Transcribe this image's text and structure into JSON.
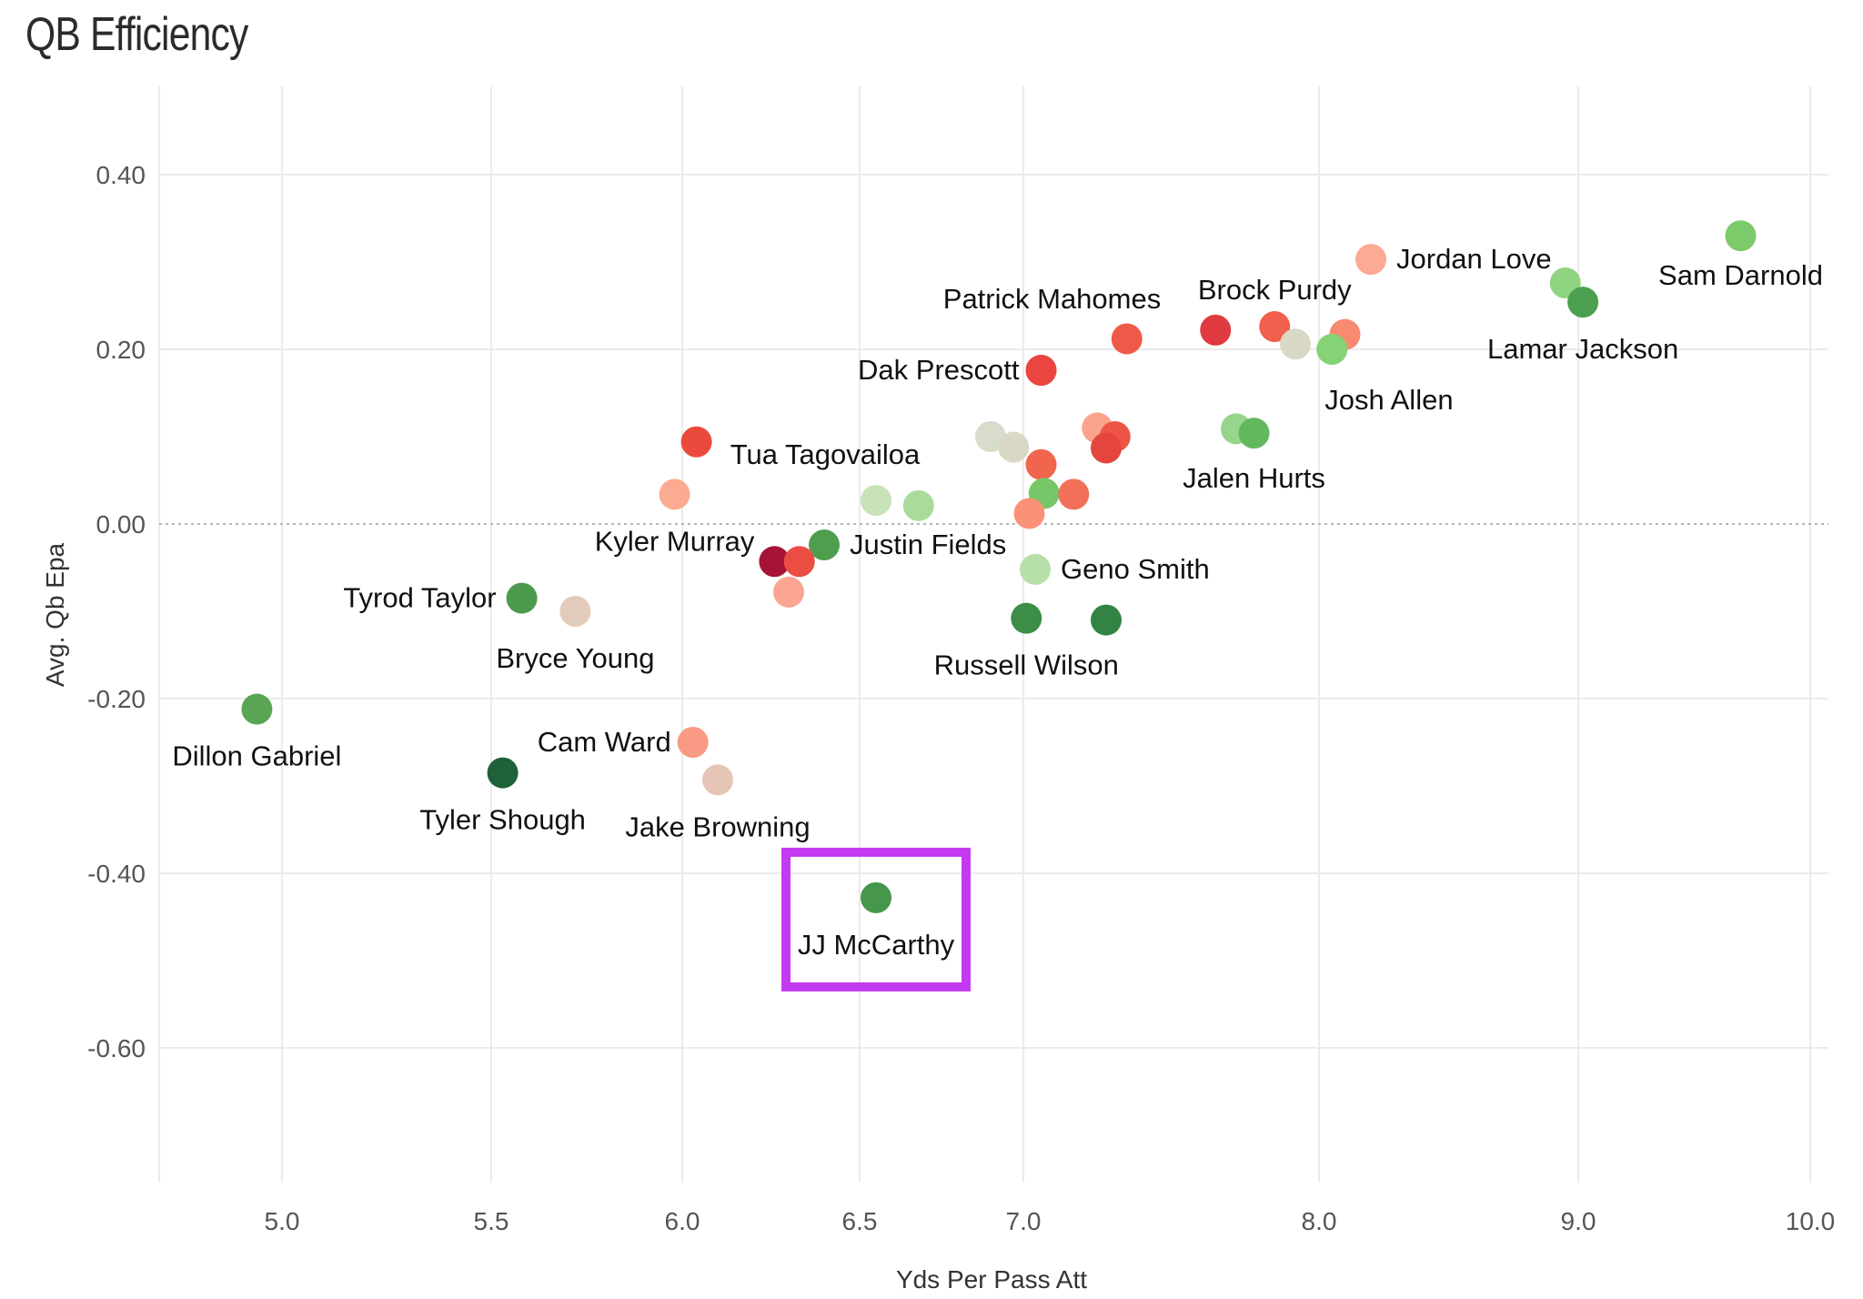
{
  "chart_data": {
    "type": "scatter",
    "title": "QB Efficiency",
    "xlabel": "Yds Per Pass Att",
    "ylabel": "Avg. Qb Epa",
    "xlim": [
      4.75,
      10.05
    ],
    "ylim": [
      -0.755,
      0.5
    ],
    "x_ticks": [
      5.0,
      5.5,
      6.0,
      6.5,
      7.0,
      8.0,
      9.0,
      10.0
    ],
    "x_tick_labels": [
      "5.0",
      "5.5",
      "6.0",
      "6.5",
      "7.0",
      "8.0",
      "9.0",
      "10.0"
    ],
    "y_ticks": [
      0.4,
      0.2,
      0.0,
      -0.2,
      -0.4,
      -0.6
    ],
    "y_tick_labels": [
      "0.40",
      "0.20",
      "0.00",
      "-0.20",
      "-0.40",
      "-0.60"
    ],
    "grid": true,
    "reference_line_y": 0.0,
    "highlight": "JJ McCarthy",
    "highlight_color": "#c43af0",
    "points": [
      {
        "name": "Sam Darnold",
        "x": 9.7,
        "y": 0.33,
        "color": "#7dca6b"
      },
      {
        "name": "Jordan Love",
        "x": 8.2,
        "y": 0.303,
        "color": "#fcaa95"
      },
      {
        "name": "",
        "x": 8.95,
        "y": 0.276,
        "color": "#8fd480"
      },
      {
        "name": "Lamar Jackson",
        "x": 9.02,
        "y": 0.254,
        "color": "#4c9f4f"
      },
      {
        "name": "Brock Purdy",
        "x": 7.85,
        "y": 0.226,
        "color": "#f0604d"
      },
      {
        "name": "",
        "x": 7.65,
        "y": 0.222,
        "color": "#de3a40"
      },
      {
        "name": "",
        "x": 7.35,
        "y": 0.212,
        "color": "#ef5a48"
      },
      {
        "name": "",
        "x": 8.1,
        "y": 0.217,
        "color": "#f88a72"
      },
      {
        "name": "",
        "x": 7.92,
        "y": 0.206,
        "color": "#d9d8c4"
      },
      {
        "name": "Josh Allen",
        "x": 8.05,
        "y": 0.2,
        "color": "#86d277"
      },
      {
        "name": "Patrick Mahomes",
        "x": 7.06,
        "y": 0.176,
        "color": "#ea4540"
      },
      {
        "name": "Dak Prescott",
        "x": 7.06,
        "y": 0.176,
        "color": "#ea4540"
      },
      {
        "name": "",
        "x": 7.72,
        "y": 0.109,
        "color": "#95d68a"
      },
      {
        "name": "Jalen Hurts",
        "x": 7.78,
        "y": 0.104,
        "color": "#62b85e"
      },
      {
        "name": "",
        "x": 7.25,
        "y": 0.11,
        "color": "#fba38d"
      },
      {
        "name": "",
        "x": 7.31,
        "y": 0.1,
        "color": "#ee5446"
      },
      {
        "name": "",
        "x": 7.28,
        "y": 0.087,
        "color": "#e4453e"
      },
      {
        "name": "",
        "x": 6.9,
        "y": 0.1,
        "color": "#d8dccb"
      },
      {
        "name": "",
        "x": 6.97,
        "y": 0.088,
        "color": "#d9d8c6"
      },
      {
        "name": "",
        "x": 7.06,
        "y": 0.068,
        "color": "#f1654e"
      },
      {
        "name": "",
        "x": 7.07,
        "y": 0.035,
        "color": "#76c767"
      },
      {
        "name": "",
        "x": 7.17,
        "y": 0.034,
        "color": "#f26f59"
      },
      {
        "name": "",
        "x": 7.02,
        "y": 0.012,
        "color": "#fb9278"
      },
      {
        "name": "",
        "x": 6.04,
        "y": 0.094,
        "color": "#ea4a3c"
      },
      {
        "name": "",
        "x": 5.98,
        "y": 0.034,
        "color": "#fcab93"
      },
      {
        "name": "Tua Tagovailoa",
        "x": 6.55,
        "y": 0.027,
        "color": "#c8e2b9"
      },
      {
        "name": "",
        "x": 6.68,
        "y": 0.021,
        "color": "#a9dc9b"
      },
      {
        "name": "Justin Fields",
        "x": 6.4,
        "y": -0.024,
        "color": "#4f9e4e"
      },
      {
        "name": "Kyler Murray",
        "x": 6.26,
        "y": -0.043,
        "color": "#a51436"
      },
      {
        "name": "",
        "x": 6.33,
        "y": -0.043,
        "color": "#ec4d43"
      },
      {
        "name": "",
        "x": 6.3,
        "y": -0.078,
        "color": "#fba593"
      },
      {
        "name": "Geno Smith",
        "x": 7.04,
        "y": -0.052,
        "color": "#b7e0a8"
      },
      {
        "name": "Russell Wilson",
        "x": 7.01,
        "y": -0.108,
        "color": "#3c8e46"
      },
      {
        "name": "",
        "x": 7.28,
        "y": -0.11,
        "color": "#338444"
      },
      {
        "name": "Tyrod Taylor",
        "x": 5.58,
        "y": -0.085,
        "color": "#4c9a4e"
      },
      {
        "name": "Bryce Young",
        "x": 5.72,
        "y": -0.1,
        "color": "#e3cbbb"
      },
      {
        "name": "Dillon Gabriel",
        "x": 4.94,
        "y": -0.212,
        "color": "#5aa553"
      },
      {
        "name": "Cam Ward",
        "x": 6.03,
        "y": -0.25,
        "color": "#f99a84"
      },
      {
        "name": "Jake Browning",
        "x": 6.1,
        "y": -0.293,
        "color": "#e5c5b5"
      },
      {
        "name": "Tyler Shough",
        "x": 5.53,
        "y": -0.285,
        "color": "#1f6139"
      },
      {
        "name": "JJ McCarthy",
        "x": 6.55,
        "y": -0.428,
        "color": "#46964c"
      }
    ]
  }
}
